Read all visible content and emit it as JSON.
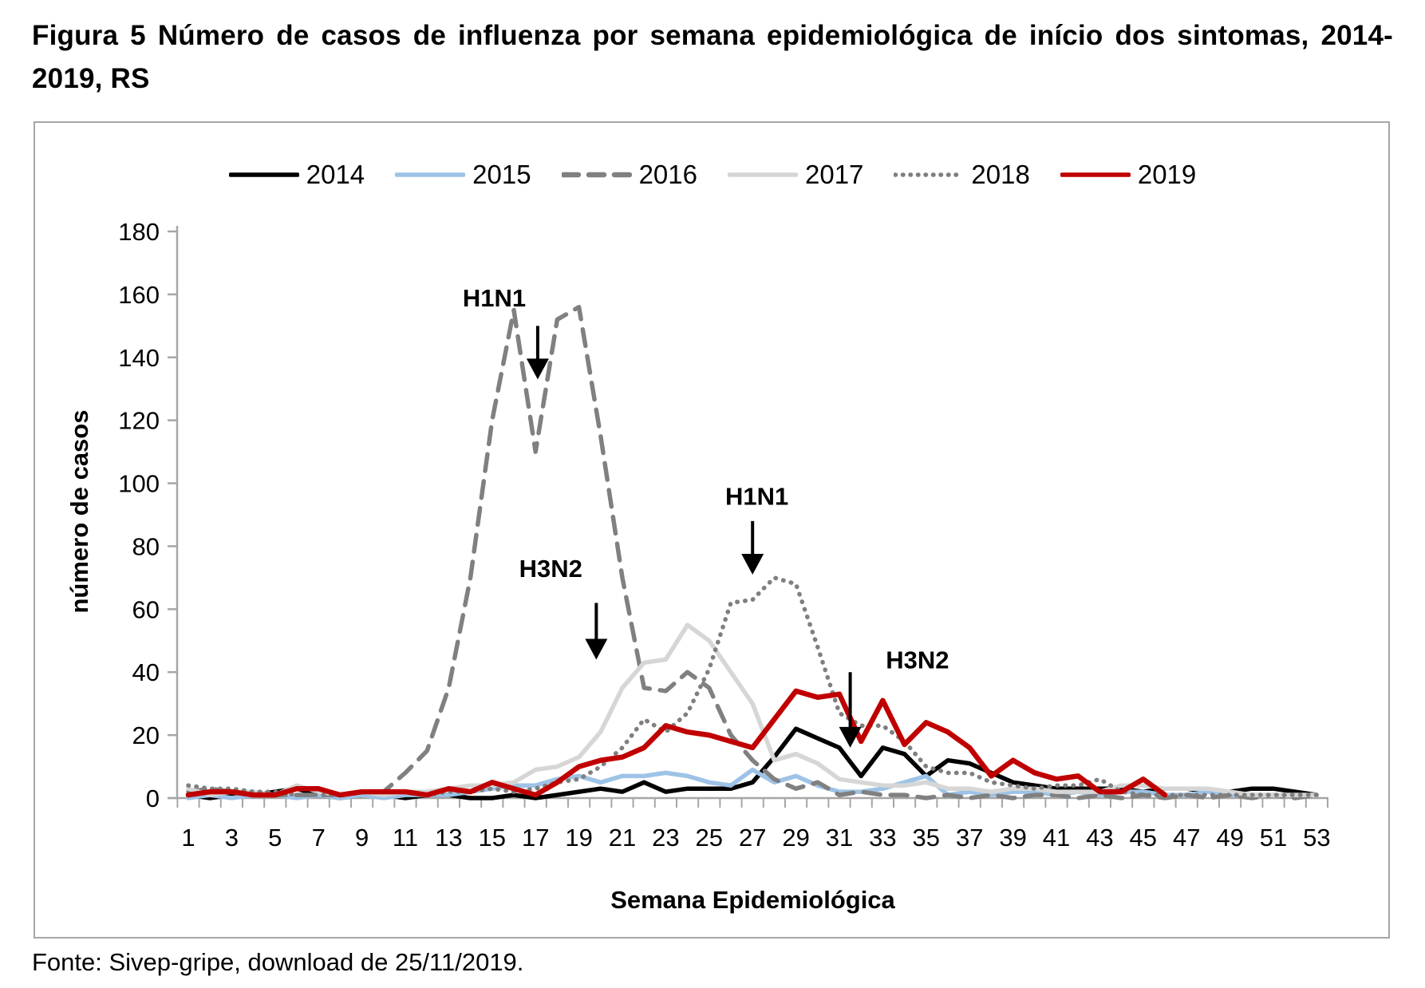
{
  "title": "Figura 5 Número de casos de influenza por semana epidemiológica de início dos sintomas, 2014-2019, RS",
  "footer": "Fonte: Sivep-gripe, download de 25/11/2019.",
  "chart_data": {
    "type": "line",
    "title": "",
    "xlabel": "Semana Epidemiológica",
    "ylabel": "número de casos",
    "ylim": [
      0,
      180
    ],
    "y_ticks": [
      0,
      20,
      40,
      60,
      80,
      100,
      120,
      140,
      160,
      180
    ],
    "x_tick_labels": [
      1,
      3,
      5,
      7,
      9,
      11,
      13,
      15,
      17,
      19,
      21,
      23,
      25,
      27,
      29,
      31,
      33,
      35,
      37,
      39,
      41,
      43,
      45,
      47,
      49,
      51,
      53
    ],
    "x": [
      1,
      2,
      3,
      4,
      5,
      6,
      7,
      8,
      9,
      10,
      11,
      12,
      13,
      14,
      15,
      16,
      17,
      18,
      19,
      20,
      21,
      22,
      23,
      24,
      25,
      26,
      27,
      28,
      29,
      30,
      31,
      32,
      33,
      34,
      35,
      36,
      37,
      38,
      39,
      40,
      41,
      42,
      43,
      44,
      45,
      46,
      47,
      48,
      49,
      50,
      51,
      52,
      53
    ],
    "grid": false,
    "legend_position": "top",
    "series": [
      {
        "name": "2014",
        "color": "#000000",
        "style": "solid",
        "values": [
          1,
          0,
          1,
          1,
          2,
          3,
          1,
          0,
          1,
          1,
          0,
          1,
          1,
          0,
          0,
          1,
          0,
          1,
          2,
          3,
          2,
          5,
          2,
          3,
          3,
          3,
          5,
          13,
          22,
          19,
          16,
          7,
          16,
          14,
          7,
          12,
          11,
          8,
          5,
          4,
          3,
          3,
          3,
          3,
          2,
          3,
          3,
          2,
          2,
          3,
          3,
          2,
          1
        ]
      },
      {
        "name": "2015",
        "color": "#9dc3e6",
        "style": "solid",
        "values": [
          0,
          1,
          0,
          1,
          1,
          0,
          1,
          0,
          1,
          0,
          1,
          1,
          1,
          2,
          3,
          4,
          4,
          6,
          7,
          5,
          7,
          7,
          8,
          7,
          5,
          4,
          9,
          5,
          7,
          4,
          2,
          2,
          3,
          5,
          7,
          1,
          2,
          1,
          2,
          2,
          1,
          2,
          1,
          2,
          2,
          1,
          1,
          2,
          1,
          1,
          1,
          1,
          1
        ]
      },
      {
        "name": "2016",
        "color": "#808080",
        "style": "dashed",
        "values": [
          2,
          3,
          2,
          1,
          1,
          1,
          1,
          1,
          2,
          2,
          8,
          15,
          35,
          70,
          120,
          155,
          110,
          152,
          156,
          115,
          70,
          35,
          34,
          40,
          35,
          20,
          12,
          6,
          3,
          5,
          1,
          2,
          1,
          1,
          0,
          1,
          0,
          1,
          0,
          1,
          1,
          0,
          1,
          0,
          1,
          0,
          1,
          0,
          1,
          0,
          1,
          0,
          1
        ]
      },
      {
        "name": "2017",
        "color": "#d6d6d6",
        "style": "solid",
        "values": [
          3,
          1,
          2,
          2,
          1,
          4,
          2,
          1,
          2,
          1,
          2,
          2,
          3,
          4,
          4,
          5,
          9,
          10,
          13,
          21,
          35,
          43,
          44,
          55,
          50,
          40,
          30,
          12,
          14,
          11,
          6,
          5,
          4,
          4,
          5,
          3,
          3,
          2,
          3,
          3,
          2,
          2,
          2,
          4,
          4,
          3,
          3,
          3,
          2,
          1,
          1,
          1,
          1
        ]
      },
      {
        "name": "2018",
        "color": "#7f7f7f",
        "style": "dotted",
        "values": [
          4,
          3,
          3,
          2,
          2,
          1,
          1,
          1,
          2,
          2,
          2,
          1,
          2,
          2,
          3,
          2,
          3,
          5,
          6,
          10,
          16,
          25,
          21,
          27,
          41,
          62,
          63,
          70,
          68,
          48,
          27,
          23,
          23,
          18,
          10,
          8,
          8,
          5,
          4,
          3,
          4,
          4,
          6,
          2,
          1,
          1,
          1,
          1,
          1,
          1,
          1,
          1,
          1
        ]
      },
      {
        "name": "2019",
        "color": "#c00000",
        "style": "solid",
        "values": [
          1,
          2,
          2,
          1,
          1,
          3,
          3,
          1,
          2,
          2,
          2,
          1,
          3,
          2,
          5,
          3,
          1,
          5,
          10,
          12,
          13,
          16,
          23,
          21,
          20,
          18,
          16,
          25,
          34,
          32,
          33,
          18,
          31,
          17,
          24,
          21,
          16,
          7,
          12,
          8,
          6,
          7,
          2,
          2,
          6,
          1,
          null,
          null,
          null,
          null,
          null,
          null,
          null
        ]
      }
    ],
    "annotations": [
      {
        "label": "H1N1",
        "label_week": 15.1,
        "label_value": 159,
        "arrow_week": 17.1,
        "arrow_from": 150,
        "arrow_to": 133
      },
      {
        "label": "H3N2",
        "label_week": 17.7,
        "label_value": 73,
        "arrow_week": 19.8,
        "arrow_from": 62,
        "arrow_to": 44
      },
      {
        "label": "H1N1",
        "label_week": 27.2,
        "label_value": 96,
        "arrow_week": 27.0,
        "arrow_from": 88,
        "arrow_to": 71
      },
      {
        "label": "H3N2",
        "label_week": 34.6,
        "label_value": 44,
        "arrow_week": 31.5,
        "arrow_from": 40,
        "arrow_to": 16
      }
    ]
  }
}
